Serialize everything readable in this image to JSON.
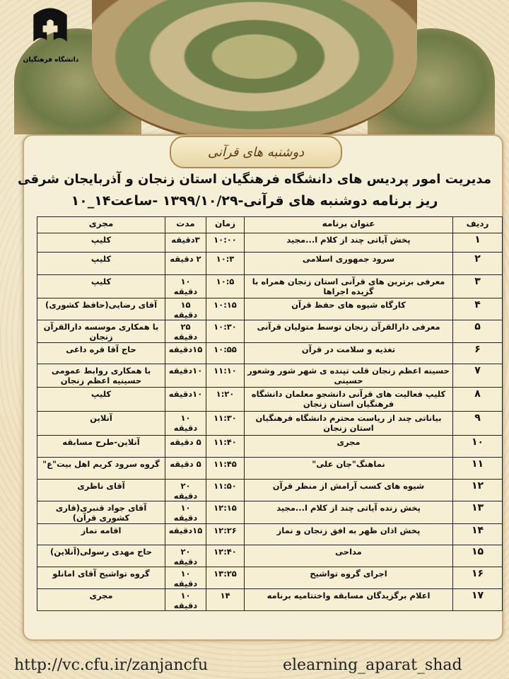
{
  "header": {
    "logo_text": "دانشگاه فرهنگیان",
    "plaque": "دوشنبه های قرآنی",
    "title": "مدیریت امور پردیس های دانشگاه فرهنگیان استان زنجان و آذربایجان شرقی",
    "subtitle": "ریز برنامه دوشنبه های قرآنی-۱۳۹۹/۱۰/۲۹ -ساعت۱۴_۱۰"
  },
  "table": {
    "columns": [
      "ردیف",
      "عنوان برنامه",
      "زمان",
      "مدت",
      "مجری"
    ],
    "rows": [
      {
        "n": "۱",
        "title": "پخش آیاتی چند از کلام ا...مجید",
        "time": "۱۰:۰۰",
        "dur": "۳دقیقه",
        "host": "کلیپ"
      },
      {
        "n": "۲",
        "title": "سرود جمهوری اسلامی",
        "time": "۱۰:۳",
        "dur": "۲ دقیقه",
        "host": "کلیپ"
      },
      {
        "n": "۳",
        "title": "معرفی برترین های قرآنی استان زنجان همراه با گزیده اجراها",
        "time": "۱۰:۵",
        "dur": "۱۰ دقیقه",
        "host": "کلیپ"
      },
      {
        "n": "۴",
        "title": "کارگاه شیوه های حفظ قرآن",
        "time": "۱۰:۱۵",
        "dur": "۱۵ دقیقه",
        "host": "آقای رضایی(حافظ کشوری)"
      },
      {
        "n": "۵",
        "title": "معرفی دارالقرآن زنجان توسط متولیان قرآنی",
        "time": "۱۰:۳۰",
        "dur": "۲۵ دقیقه",
        "host": "با همکاری موسسه دارالقرآن زنجان"
      },
      {
        "n": "۶",
        "title": "تغذیه و سلامت در قرآن",
        "time": "۱۰:۵۵",
        "dur": "۱۵دقیقه",
        "host": "حاج آقا قره داغی"
      },
      {
        "n": "۷",
        "title": "حسینه اعظم زنجان قلب تپنده ی شهر شور وشعور حسینی",
        "time": "۱۱:۱۰",
        "dur": "۱۰دقیقه",
        "host": "با همکاری روابط عمومی حسینیه اعظم زنجان"
      },
      {
        "n": "۸",
        "title": "کلیپ فعالیت های قرآنی دانشجو معلمان دانشگاه فرهنگیان استان زنجان",
        "time": "۱:۲۰",
        "dur": "۱۰دقیقه",
        "host": "کلیپ"
      },
      {
        "n": "۹",
        "title": "بیاناتی چند از ریاست محترم دانشگاه فرهنگیان استان زنجان",
        "time": "۱۱:۳۰",
        "dur": "۱۰ دقیقه",
        "host": "آنلاین"
      },
      {
        "n": "۱۰",
        "title": "مجری",
        "time": "۱۱:۴۰",
        "dur": "۵ دقیقه",
        "host": "آنلاین-طرح مسابقه"
      },
      {
        "n": "۱۱",
        "title": "نماهنگ\"جان علی\"",
        "time": "۱۱:۴۵",
        "dur": "۵ دقیقه",
        "host": "گروه سرود کریم اهل بیت\"ع\""
      },
      {
        "n": "۱۲",
        "title": "شیوه های کسب آرامش از منظر قرآن",
        "time": "۱۱:۵۰",
        "dur": "۲۰ دقیقه",
        "host": "آقای ناظری"
      },
      {
        "n": "۱۳",
        "title": "پخش زنده آیاتی چند از کلام ا...مجید",
        "time": "۱۲:۱۵",
        "dur": "۱۰ دقیقه",
        "host": "آقای جواد قنبری(قاری کشوری قرآن)"
      },
      {
        "n": "۱۴",
        "title": "پخش اذان ظهر به افق زنجان و نماز",
        "time": "۱۲:۲۶",
        "dur": "۱۵دقیقه",
        "host": "اقامه نماز"
      },
      {
        "n": "۱۵",
        "title": "مداحی",
        "time": "۱۲:۴۰",
        "dur": "۲۰ دقیقه",
        "host": "حاج مهدی رسولی(آنلاین)"
      },
      {
        "n": "۱۶",
        "title": "اجرای گروه تواشیح",
        "time": "۱۳:۲۵",
        "dur": "۱۰ دقیقه",
        "host": "گروه تواشیح آقای امانلو"
      },
      {
        "n": "۱۷",
        "title": "اعلام برگزیدگان مسابقه واختتامیه برنامه",
        "time": "۱۴",
        "dur": "۱۰ دقیقه",
        "host": "مجری"
      }
    ]
  },
  "footer": {
    "left": "http://vc.cfu.ir/zanjancfu",
    "right": "elearning_aparat_shad"
  }
}
